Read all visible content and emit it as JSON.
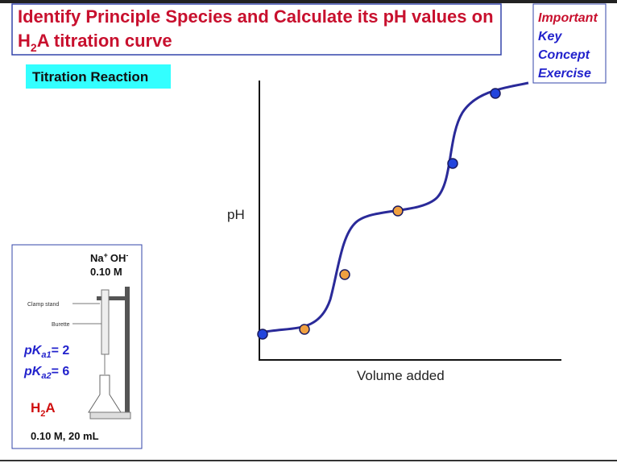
{
  "header": {
    "title_line1": "Identify Principle Species and Calculate its pH values on",
    "title_line2": {
      "h": "H",
      "sub": "2",
      "rest": "A titration curve"
    }
  },
  "badge": [
    "Important",
    "Key",
    "Concept",
    "Exercise"
  ],
  "section_label": "Titration Reaction",
  "graph": {
    "y_label": "pH",
    "x_label": "Volume added"
  },
  "apparatus": {
    "titrant": {
      "na": "Na",
      "plus": "+",
      "oh": "OH",
      "minus": "-"
    },
    "titrant_conc": "0.10 M",
    "clamp_label": "Clamp stand",
    "burette_label": "Burette",
    "pka1": {
      "pk": "pK",
      "sub": "a1",
      "rest": "= 2"
    },
    "pka2": {
      "pk": "pK",
      "sub": "a2",
      "rest": "= 6"
    },
    "analyte": {
      "h": "H",
      "sub": "2",
      "rest": "A"
    },
    "analyte_conc": "0.10 M, 20 mL"
  }
}
